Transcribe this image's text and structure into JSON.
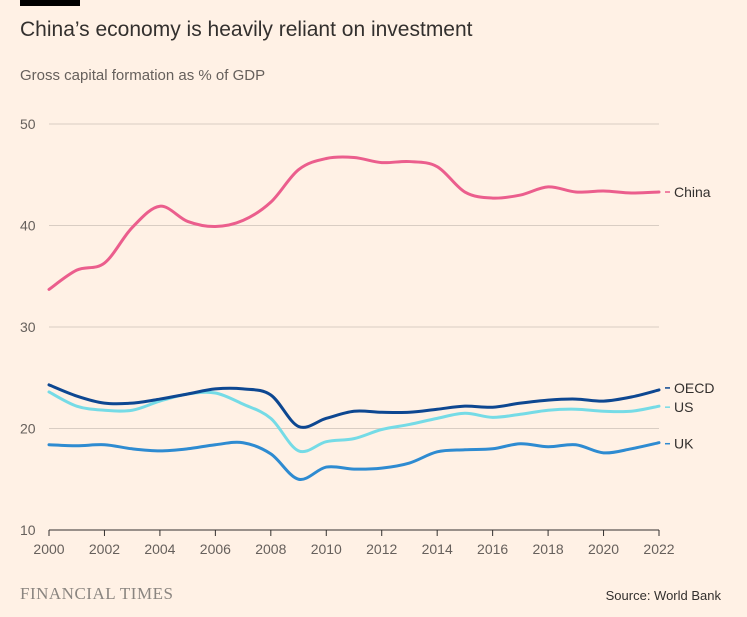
{
  "header": {
    "title": "China’s economy is heavily reliant on investment",
    "subtitle": "Gross capital formation as % of GDP"
  },
  "footer": {
    "logo_text": "FINANCIAL TIMES",
    "source": "Source: World Bank"
  },
  "chart_data": {
    "type": "line",
    "title": "China’s economy is heavily reliant on investment",
    "subtitle": "Gross capital formation as % of GDP",
    "xlabel": "",
    "ylabel": "",
    "xlim": [
      2000,
      2022
    ],
    "ylim": [
      10,
      50
    ],
    "yticks": [
      10,
      20,
      30,
      40,
      50
    ],
    "xticks": [
      2000,
      2002,
      2004,
      2006,
      2008,
      2010,
      2012,
      2014,
      2016,
      2018,
      2020,
      2022
    ],
    "grid": "horizontal",
    "legend": "direct labels at right end of lines",
    "x": [
      2000,
      2001,
      2002,
      2003,
      2004,
      2005,
      2006,
      2007,
      2008,
      2009,
      2010,
      2011,
      2012,
      2013,
      2014,
      2015,
      2016,
      2017,
      2018,
      2019,
      2020,
      2021,
      2022
    ],
    "series": [
      {
        "name": "China",
        "color": "#eb5e8d",
        "values": [
          33.7,
          35.6,
          36.3,
          39.8,
          41.9,
          40.4,
          39.9,
          40.5,
          42.3,
          45.5,
          46.6,
          46.7,
          46.2,
          46.3,
          45.8,
          43.3,
          42.7,
          43.0,
          43.8,
          43.3,
          43.4,
          43.2,
          43.3
        ]
      },
      {
        "name": "OECD",
        "color": "#0d4791",
        "values": [
          24.3,
          23.2,
          22.5,
          22.5,
          22.9,
          23.4,
          23.9,
          23.9,
          23.3,
          20.2,
          21.0,
          21.7,
          21.6,
          21.6,
          21.9,
          22.2,
          22.1,
          22.5,
          22.8,
          22.9,
          22.7,
          23.1,
          23.8
        ]
      },
      {
        "name": "US",
        "color": "#75dbe6",
        "values": [
          23.6,
          22.2,
          21.8,
          21.8,
          22.7,
          23.4,
          23.5,
          22.4,
          21.0,
          17.8,
          18.7,
          19.0,
          19.9,
          20.4,
          21.0,
          21.5,
          21.1,
          21.4,
          21.8,
          21.9,
          21.7,
          21.7,
          22.2
        ]
      },
      {
        "name": "UK",
        "color": "#2e8bd1",
        "values": [
          18.4,
          18.3,
          18.4,
          18.0,
          17.8,
          18.0,
          18.4,
          18.6,
          17.5,
          15.0,
          16.2,
          16.0,
          16.1,
          16.6,
          17.7,
          17.9,
          18.0,
          18.5,
          18.2,
          18.4,
          17.6,
          18.0,
          18.6
        ]
      }
    ]
  }
}
